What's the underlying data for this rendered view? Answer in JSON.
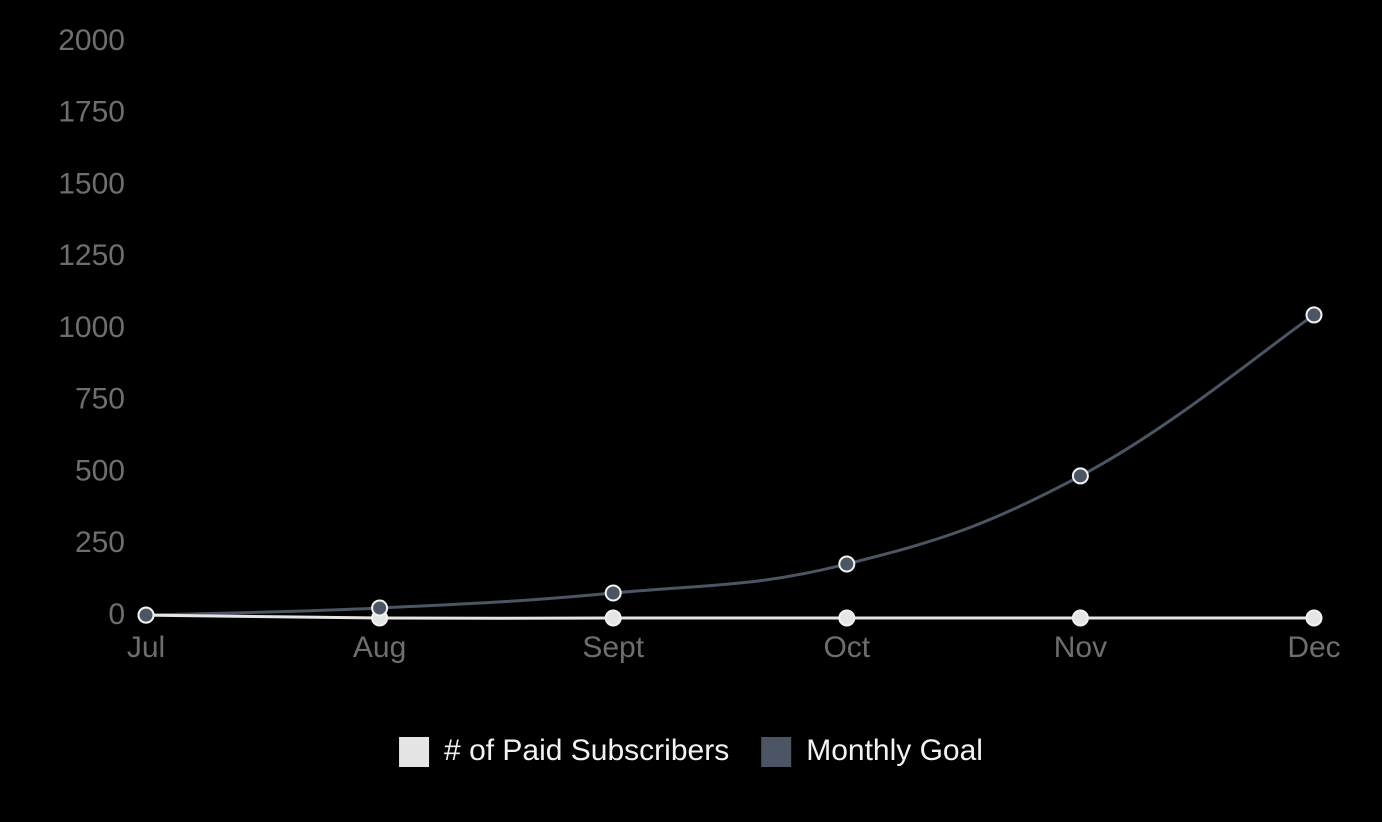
{
  "chart_data": {
    "type": "line",
    "categories": [
      "Jul",
      "Aug",
      "Sept",
      "Oct",
      "Nov",
      "Dec"
    ],
    "series": [
      {
        "name": "# of Paid Subscribers",
        "color": "#e5e5e5",
        "values": [
          10,
          0,
          0,
          0,
          0,
          0
        ]
      },
      {
        "name": "Monthly Goal",
        "color": "#4b5563",
        "values": [
          10,
          35,
          87,
          188,
          495,
          1056
        ]
      }
    ],
    "ylim": [
      0,
      2000
    ],
    "yticks": [
      0,
      250,
      500,
      750,
      1000,
      1250,
      1500,
      1750,
      2000
    ],
    "grid": false,
    "legend": "bottom"
  }
}
